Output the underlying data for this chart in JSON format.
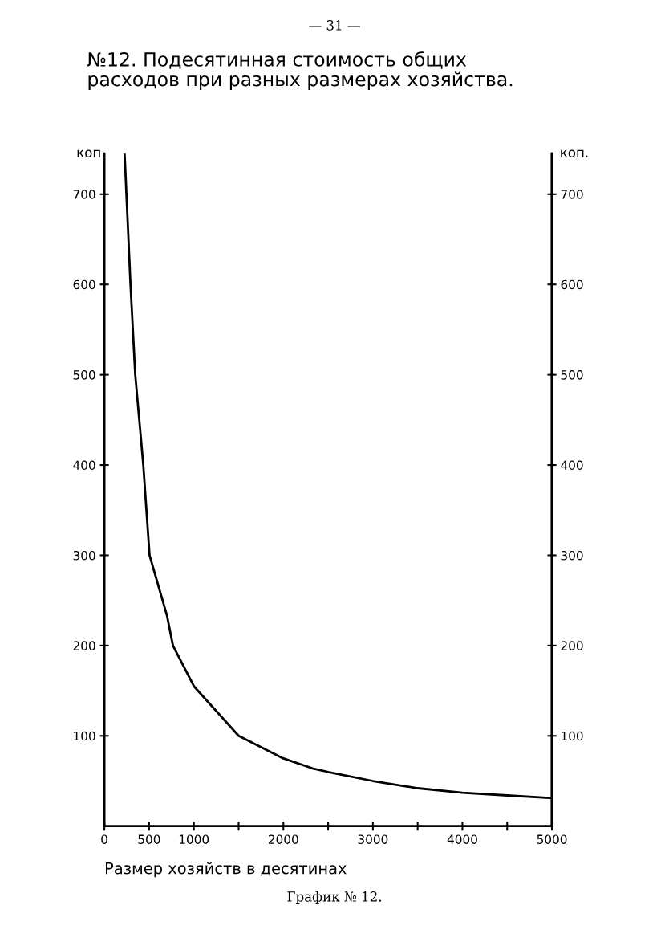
{
  "chart_data": {
    "type": "line",
    "title": "№12. Подесятинная стоимость общих\nрасходов при разных размерах хозяйства.",
    "xlabel": "Размер хозяйств в десятинах",
    "ylabel": "коп.",
    "y2label": "коп.",
    "annotations": [
      "— 31 —",
      "График № 12."
    ],
    "x": [
      226,
      292,
      345,
      435,
      505,
      700,
      766,
      1000,
      1500,
      2000,
      2325,
      2500,
      3000,
      3500,
      4000,
      4500,
      5000
    ],
    "series": [
      {
        "color": "#000000",
        "values": [
          745,
          600,
          500,
          400,
          300,
          233,
          200,
          155,
          100,
          75,
          64,
          60,
          50,
          42,
          37,
          34,
          31
        ]
      }
    ],
    "xlim": [
      0,
      5000
    ],
    "xticks": [
      0,
      500,
      1000,
      {
        "value": 1500,
        "label": null
      },
      2000,
      {
        "value": 2500,
        "label": null
      },
      3000,
      {
        "value": 3500,
        "label": null
      },
      4000,
      {
        "value": 4500,
        "label": null
      },
      5000
    ],
    "ylim": [
      0,
      745
    ],
    "yticks": [
      100,
      200,
      300,
      400,
      500,
      600,
      700
    ],
    "y2lim": [
      0,
      745
    ],
    "y2ticks": [
      100,
      200,
      300,
      400,
      500,
      600,
      700
    ],
    "grid": false,
    "legend": false,
    "marker": "none",
    "line_style": "solid"
  }
}
